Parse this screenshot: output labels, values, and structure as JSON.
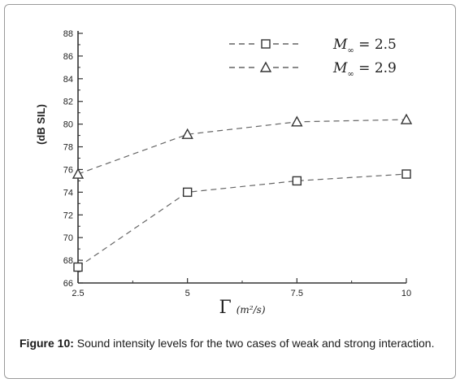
{
  "chart_data": {
    "type": "line",
    "x": [
      2.5,
      5,
      7.5,
      10
    ],
    "xticks": [
      "2.5",
      "5",
      "7.5",
      "10"
    ],
    "yticks": [
      "66",
      "68",
      "70",
      "72",
      "74",
      "76",
      "78",
      "80",
      "82",
      "84",
      "86",
      "88"
    ],
    "xlim": [
      2.5,
      10
    ],
    "ylim": [
      66,
      88
    ],
    "ylabel": "(dB SIL)",
    "xlabel_symbol": "Γ",
    "xlabel_unit": "(m²/s)",
    "grid": false,
    "legend_position": "top-right",
    "series": [
      {
        "name": "M∞ = 2.5",
        "name_prefix": "M",
        "name_sub": "∞",
        "name_value": " = 2.5",
        "marker": "square",
        "values": [
          67.4,
          74.0,
          75.0,
          75.6
        ]
      },
      {
        "name": "M∞ = 2.9",
        "name_prefix": "M",
        "name_sub": "∞",
        "name_value": " = 2.9",
        "marker": "triangle",
        "values": [
          75.6,
          79.1,
          80.2,
          80.4
        ]
      }
    ]
  },
  "caption": {
    "label": "Figure 10:",
    "text": "Sound intensity levels for the two cases of weak and strong interaction."
  }
}
